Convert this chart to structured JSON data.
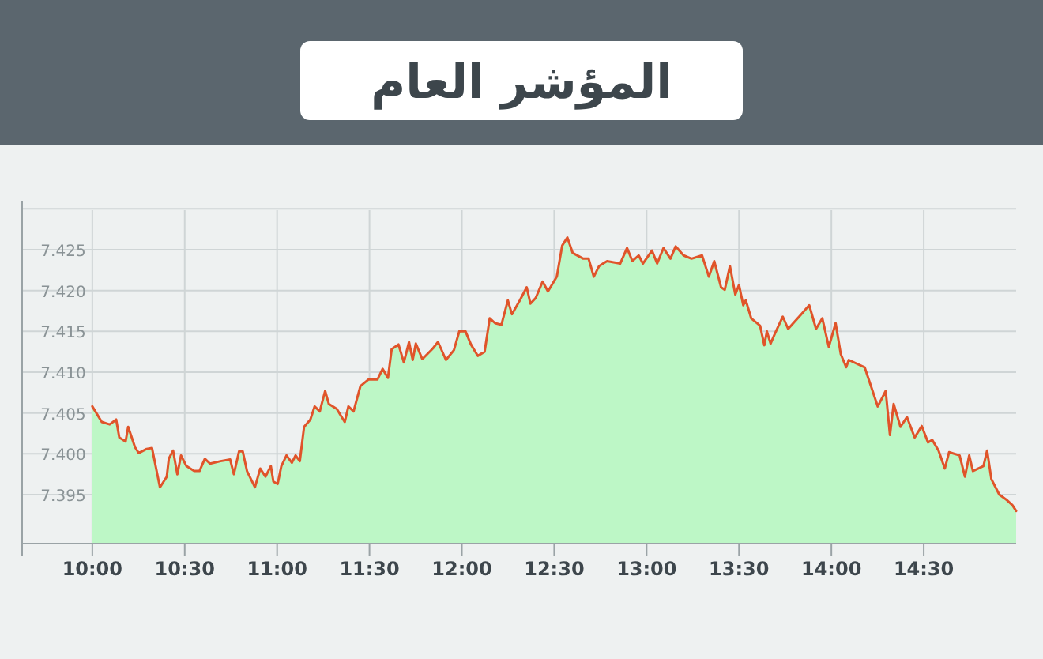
{
  "chart_data": {
    "type": "area",
    "title": "المؤشر العام",
    "x": [
      10.0,
      10.051,
      10.094,
      10.129,
      10.146,
      10.18,
      10.194,
      10.231,
      10.251,
      10.294,
      10.323,
      10.366,
      10.403,
      10.414,
      10.437,
      10.46,
      10.48,
      10.509,
      10.551,
      10.58,
      10.609,
      10.637,
      10.694,
      10.746,
      10.766,
      10.794,
      10.814,
      10.837,
      10.88,
      10.909,
      10.937,
      10.966,
      10.98,
      11.003,
      11.023,
      11.051,
      11.08,
      11.1,
      11.123,
      11.146,
      11.18,
      11.203,
      11.231,
      11.26,
      11.28,
      11.323,
      11.366,
      11.386,
      11.414,
      11.451,
      11.494,
      11.543,
      11.571,
      11.6,
      11.62,
      11.657,
      11.686,
      11.714,
      11.734,
      11.751,
      11.786,
      11.843,
      11.871,
      11.914,
      11.957,
      11.986,
      12.02,
      12.049,
      12.086,
      12.123,
      12.151,
      12.18,
      12.214,
      12.249,
      12.271,
      12.314,
      12.351,
      12.371,
      12.4,
      12.437,
      12.466,
      12.514,
      12.543,
      12.571,
      12.6,
      12.657,
      12.686,
      12.714,
      12.743,
      12.786,
      12.857,
      12.894,
      12.923,
      12.957,
      12.98,
      13.029,
      13.057,
      13.091,
      13.129,
      13.157,
      13.2,
      13.243,
      13.3,
      13.337,
      13.366,
      13.403,
      13.423,
      13.451,
      13.48,
      13.5,
      13.523,
      13.537,
      13.566,
      13.614,
      13.637,
      13.651,
      13.671,
      13.694,
      13.737,
      13.766,
      13.837,
      13.88,
      13.917,
      13.951,
      13.986,
      14.023,
      14.051,
      14.08,
      14.094,
      14.18,
      14.214,
      14.251,
      14.294,
      14.317,
      14.337,
      14.374,
      14.409,
      14.451,
      14.489,
      14.523,
      14.546,
      14.58,
      14.614,
      14.637,
      14.694,
      14.723,
      14.746,
      14.766,
      14.823,
      14.843,
      14.866,
      14.909,
      14.946,
      14.98,
      15.0
    ],
    "series": [
      {
        "color": "#bdf7c6",
        "values": [
          7.4058,
          7.4039,
          7.4036,
          7.4042,
          7.402,
          7.4015,
          7.4033,
          7.4008,
          7.4001,
          7.4006,
          7.4007,
          7.3959,
          7.3972,
          7.3994,
          7.4004,
          7.3975,
          7.3998,
          7.3985,
          7.3979,
          7.3979,
          7.3994,
          7.3988,
          7.3991,
          7.3993,
          7.3975,
          7.4003,
          7.4003,
          7.3979,
          7.3959,
          7.3982,
          7.3972,
          7.3985,
          7.3966,
          7.3963,
          7.3985,
          7.3998,
          7.3989,
          7.3998,
          7.3991,
          7.4033,
          7.4042,
          7.4058,
          7.4052,
          7.4077,
          7.4061,
          7.4055,
          7.4039,
          7.4058,
          7.4052,
          7.4083,
          7.4091,
          7.4091,
          7.4104,
          7.4093,
          7.4128,
          7.4134,
          7.4112,
          7.4137,
          7.4115,
          7.4135,
          7.4116,
          7.4129,
          7.4137,
          7.4115,
          7.4127,
          7.415,
          7.415,
          7.4134,
          7.412,
          7.4125,
          7.4166,
          7.416,
          7.4158,
          7.4188,
          7.4171,
          7.4188,
          7.4204,
          7.4184,
          7.4191,
          7.4211,
          7.4199,
          7.4217,
          7.4255,
          7.4265,
          7.4246,
          7.4239,
          7.4239,
          7.4217,
          7.423,
          7.4236,
          7.4233,
          7.4252,
          7.4236,
          7.4243,
          7.4233,
          7.4249,
          7.4233,
          7.4252,
          7.4239,
          7.4254,
          7.4243,
          7.4239,
          7.4243,
          7.4217,
          7.4236,
          7.4204,
          7.4201,
          7.423,
          7.4195,
          7.4207,
          7.4182,
          7.4188,
          7.4166,
          7.4157,
          7.4133,
          7.415,
          7.4135,
          7.4147,
          7.4168,
          7.4153,
          7.4171,
          7.4182,
          7.4153,
          7.4166,
          7.4131,
          7.416,
          7.4122,
          7.4106,
          7.4115,
          7.4106,
          7.4083,
          7.4058,
          7.4077,
          7.4023,
          7.4061,
          7.4033,
          7.4045,
          7.402,
          7.4034,
          7.4014,
          7.4017,
          7.4004,
          7.3982,
          7.4002,
          7.3998,
          7.3972,
          7.3998,
          7.3979,
          7.3985,
          7.4004,
          7.3969,
          7.395,
          7.3944,
          7.3937,
          7.393
        ]
      },
      {
        "type": "line",
        "color": "#e0542a",
        "values": [
          7.4058,
          7.4039,
          7.4036,
          7.4042,
          7.402,
          7.4015,
          7.4033,
          7.4008,
          7.4001,
          7.4006,
          7.4007,
          7.3959,
          7.3972,
          7.3994,
          7.4004,
          7.3975,
          7.3998,
          7.3985,
          7.3979,
          7.3979,
          7.3994,
          7.3988,
          7.3991,
          7.3993,
          7.3975,
          7.4003,
          7.4003,
          7.3979,
          7.3959,
          7.3982,
          7.3972,
          7.3985,
          7.3966,
          7.3963,
          7.3985,
          7.3998,
          7.3989,
          7.3998,
          7.3991,
          7.4033,
          7.4042,
          7.4058,
          7.4052,
          7.4077,
          7.4061,
          7.4055,
          7.4039,
          7.4058,
          7.4052,
          7.4083,
          7.4091,
          7.4091,
          7.4104,
          7.4093,
          7.4128,
          7.4134,
          7.4112,
          7.4137,
          7.4115,
          7.4135,
          7.4116,
          7.4129,
          7.4137,
          7.4115,
          7.4127,
          7.415,
          7.415,
          7.4134,
          7.412,
          7.4125,
          7.4166,
          7.416,
          7.4158,
          7.4188,
          7.4171,
          7.4188,
          7.4204,
          7.4184,
          7.4191,
          7.4211,
          7.4199,
          7.4217,
          7.4255,
          7.4265,
          7.4246,
          7.4239,
          7.4239,
          7.4217,
          7.423,
          7.4236,
          7.4233,
          7.4252,
          7.4236,
          7.4243,
          7.4233,
          7.4249,
          7.4233,
          7.4252,
          7.4239,
          7.4254,
          7.4243,
          7.4239,
          7.4243,
          7.4217,
          7.4236,
          7.4204,
          7.4201,
          7.423,
          7.4195,
          7.4207,
          7.4182,
          7.4188,
          7.4166,
          7.4157,
          7.4133,
          7.415,
          7.4135,
          7.4147,
          7.4168,
          7.4153,
          7.4171,
          7.4182,
          7.4153,
          7.4166,
          7.4131,
          7.416,
          7.4122,
          7.4106,
          7.4115,
          7.4106,
          7.4083,
          7.4058,
          7.4077,
          7.4023,
          7.4061,
          7.4033,
          7.4045,
          7.402,
          7.4034,
          7.4014,
          7.4017,
          7.4004,
          7.3982,
          7.4002,
          7.3998,
          7.3972,
          7.3998,
          7.3979,
          7.3985,
          7.4004,
          7.3969,
          7.395,
          7.3944,
          7.3937,
          7.393
        ]
      }
    ],
    "xlim": [
      9.62,
      15.0
    ],
    "xticks": [
      {
        "value": 10,
        "label": "10:00"
      },
      {
        "value": 10.5,
        "label": "10:30"
      },
      {
        "value": 11,
        "label": "11:00"
      },
      {
        "value": 11.5,
        "label": "11:30"
      },
      {
        "value": 12,
        "label": "12:00"
      },
      {
        "value": 12.5,
        "label": "12:30"
      },
      {
        "value": 13,
        "label": "13:00"
      },
      {
        "value": 13.5,
        "label": "13:30"
      },
      {
        "value": 14,
        "label": "14:00"
      },
      {
        "value": 14.5,
        "label": "14:30"
      }
    ],
    "ylim": [
      7.389,
      7.431
    ],
    "yticks": [
      {
        "value": 7.395,
        "label": "7.395"
      },
      {
        "value": 7.4,
        "label": "7.400"
      },
      {
        "value": 7.405,
        "label": "7.405"
      },
      {
        "value": 7.41,
        "label": "7.410"
      },
      {
        "value": 7.415,
        "label": "7.415"
      },
      {
        "value": 7.42,
        "label": "7.420"
      },
      {
        "value": 7.425,
        "label": "7.425"
      },
      {
        "value": 7.43,
        "label": null
      }
    ],
    "grid": true,
    "marker": "none",
    "line_style": "solid"
  }
}
